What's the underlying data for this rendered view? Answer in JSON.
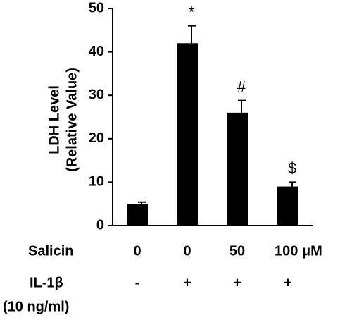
{
  "chart_data": {
    "type": "bar",
    "ylabel_lines": [
      "LDH  Level",
      "(Relative Value)"
    ],
    "values": [
      5,
      42,
      26,
      9
    ],
    "errors": [
      0.4,
      4,
      2.8,
      1
    ],
    "annotations": [
      null,
      "*",
      "#",
      "$"
    ],
    "color": "#000000",
    "ylim": [
      0,
      50
    ],
    "yticks": [
      0,
      10,
      20,
      30,
      40,
      50
    ],
    "rows": [
      {
        "label": "Salicin",
        "values": [
          "0",
          "0",
          "50",
          "100 μM"
        ]
      },
      {
        "label": "IL-1β",
        "sublabel": "(10 ng/ml)",
        "values": [
          "-",
          "+",
          "+",
          "+"
        ]
      }
    ]
  }
}
